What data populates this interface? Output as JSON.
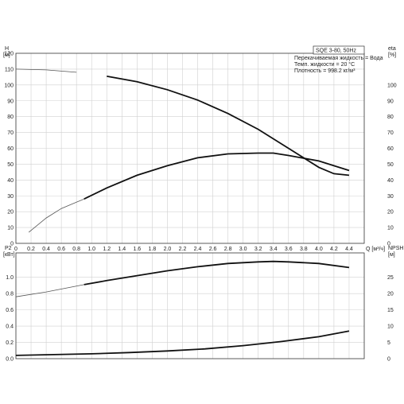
{
  "chart_data": [
    {
      "type": "line",
      "id": "top",
      "model_label": "SQE 3-80, 50Hz",
      "info_lines": [
        "Перекачиваемая жидкость = Вода",
        "Темп. жидкости = 20 °C",
        "Плотность = 998.2 кг/м³"
      ],
      "xlabel": "Q [м³/ч]",
      "xlim": [
        0,
        4.6
      ],
      "x_ticks": [
        "0",
        "0.2",
        "0.4",
        "0.6",
        "0.8",
        "1.0",
        "1.2",
        "1.4",
        "1.6",
        "1.8",
        "2.0",
        "2.2",
        "2.4",
        "2.6",
        "2.8",
        "3.0",
        "3.2",
        "3.4",
        "3.6",
        "3.8",
        "4.0",
        "4.2",
        "4.4"
      ],
      "left_axis": {
        "label_line1": "H",
        "label_line2": "[м]",
        "range": [
          0,
          120
        ],
        "ticks": [
          0,
          10,
          20,
          30,
          40,
          50,
          60,
          70,
          80,
          90,
          100,
          110,
          120
        ]
      },
      "right_axis": {
        "label_line1": "eta",
        "label_line2": "[%]",
        "range": [
          0,
          120
        ],
        "ticks": [
          0,
          10,
          20,
          30,
          40,
          50,
          60,
          70,
          80,
          90,
          100
        ]
      },
      "series": [
        {
          "key": "H",
          "axis": "left",
          "x": [
            0,
            0.4,
            0.8,
            1.2,
            1.6,
            2.0,
            2.4,
            2.8,
            3.2,
            3.6,
            4.0,
            4.2,
            4.4
          ],
          "y": [
            110,
            109.5,
            108,
            105.5,
            102,
            97,
            90.5,
            82,
            72,
            60,
            48,
            44,
            43
          ],
          "thick_from": 0.9
        },
        {
          "key": "eta",
          "axis": "right",
          "x": [
            0.17,
            0.4,
            0.6,
            0.9,
            1.2,
            1.6,
            2.0,
            2.4,
            2.8,
            3.2,
            3.4,
            3.6,
            4.0,
            4.2,
            4.4
          ],
          "y": [
            7,
            16,
            22,
            28,
            35,
            43,
            49,
            54,
            56.5,
            57,
            57,
            55.5,
            52,
            49,
            46
          ],
          "thick_from": 0.9
        }
      ]
    },
    {
      "type": "line",
      "id": "bottom",
      "xlim": [
        0,
        4.6
      ],
      "left_axis": {
        "label_line1": "P2",
        "label_line2": "[кВт]",
        "range": [
          0,
          1.3
        ],
        "ticks": [
          "0.0",
          "0.2",
          "0.4",
          "0.6",
          "0.8",
          "1.0"
        ]
      },
      "right_axis": {
        "label_line1": "NPSH",
        "label_line2": "[м]",
        "range": [
          0,
          32.5
        ],
        "ticks": [
          "0",
          "5",
          "10",
          "15",
          "20",
          "25"
        ]
      },
      "series": [
        {
          "key": "P2",
          "axis": "left",
          "x": [
            0,
            0.4,
            0.9,
            1.2,
            1.6,
            2.0,
            2.4,
            2.8,
            3.2,
            3.4,
            3.6,
            4.0,
            4.4
          ],
          "y": [
            0.76,
            0.82,
            0.91,
            0.96,
            1.02,
            1.08,
            1.13,
            1.17,
            1.19,
            1.195,
            1.19,
            1.17,
            1.12
          ],
          "thick_from": 0.9
        },
        {
          "key": "P2_low",
          "axis": "left",
          "x": [
            0,
            0.5,
            1.0,
            1.5,
            2.0,
            2.5,
            3.0,
            3.5,
            4.0,
            4.4
          ],
          "y": [
            0.04,
            0.05,
            0.06,
            0.075,
            0.095,
            0.12,
            0.16,
            0.21,
            0.27,
            0.34
          ],
          "thick_from": 0
        }
      ]
    }
  ]
}
